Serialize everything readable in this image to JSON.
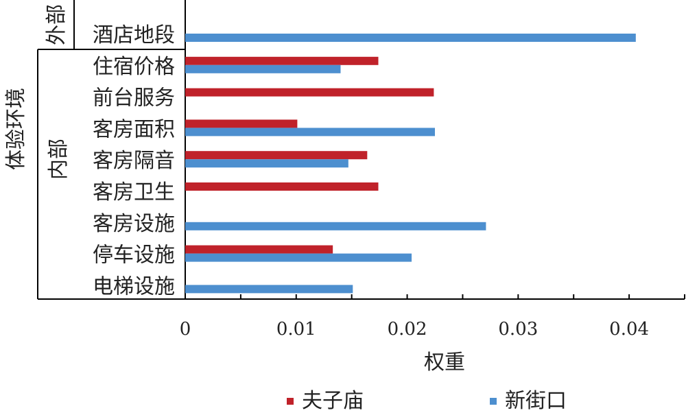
{
  "chart_data": {
    "type": "bar",
    "orientation": "horizontal",
    "categories": [
      "酒店地段",
      "住宿价格",
      "前台服务",
      "客房面积",
      "客房隔音",
      "客房卫生",
      "客房设施",
      "停车设施",
      "电梯设施"
    ],
    "groups": [
      {
        "label": "外部",
        "categories": [
          "酒店地段"
        ]
      },
      {
        "label": "内部",
        "categories": [
          "住宿价格",
          "前台服务",
          "客房面积",
          "客房隔音",
          "客房卫生",
          "客房设施",
          "停车设施",
          "电梯设施"
        ]
      }
    ],
    "outer_group_label": "体验环境",
    "series": [
      {
        "name": "夫子庙",
        "color": "#C0222A",
        "values": [
          null,
          0.0174,
          0.0224,
          0.0101,
          0.0164,
          0.0174,
          null,
          0.0133,
          null
        ]
      },
      {
        "name": "新街口",
        "color": "#4D8FCF",
        "values": [
          0.0406,
          0.014,
          null,
          0.0225,
          0.0147,
          null,
          0.0271,
          0.0204,
          0.0151
        ]
      }
    ],
    "xlabel": "权重",
    "xlim": [
      0,
      0.045
    ],
    "xticks": [
      0,
      0.01,
      0.02,
      0.03,
      0.04
    ],
    "xtick_labels": [
      "0",
      "0.01",
      "0.02",
      "0.03",
      "0.04"
    ],
    "legend_position": "bottom",
    "grid": false
  }
}
